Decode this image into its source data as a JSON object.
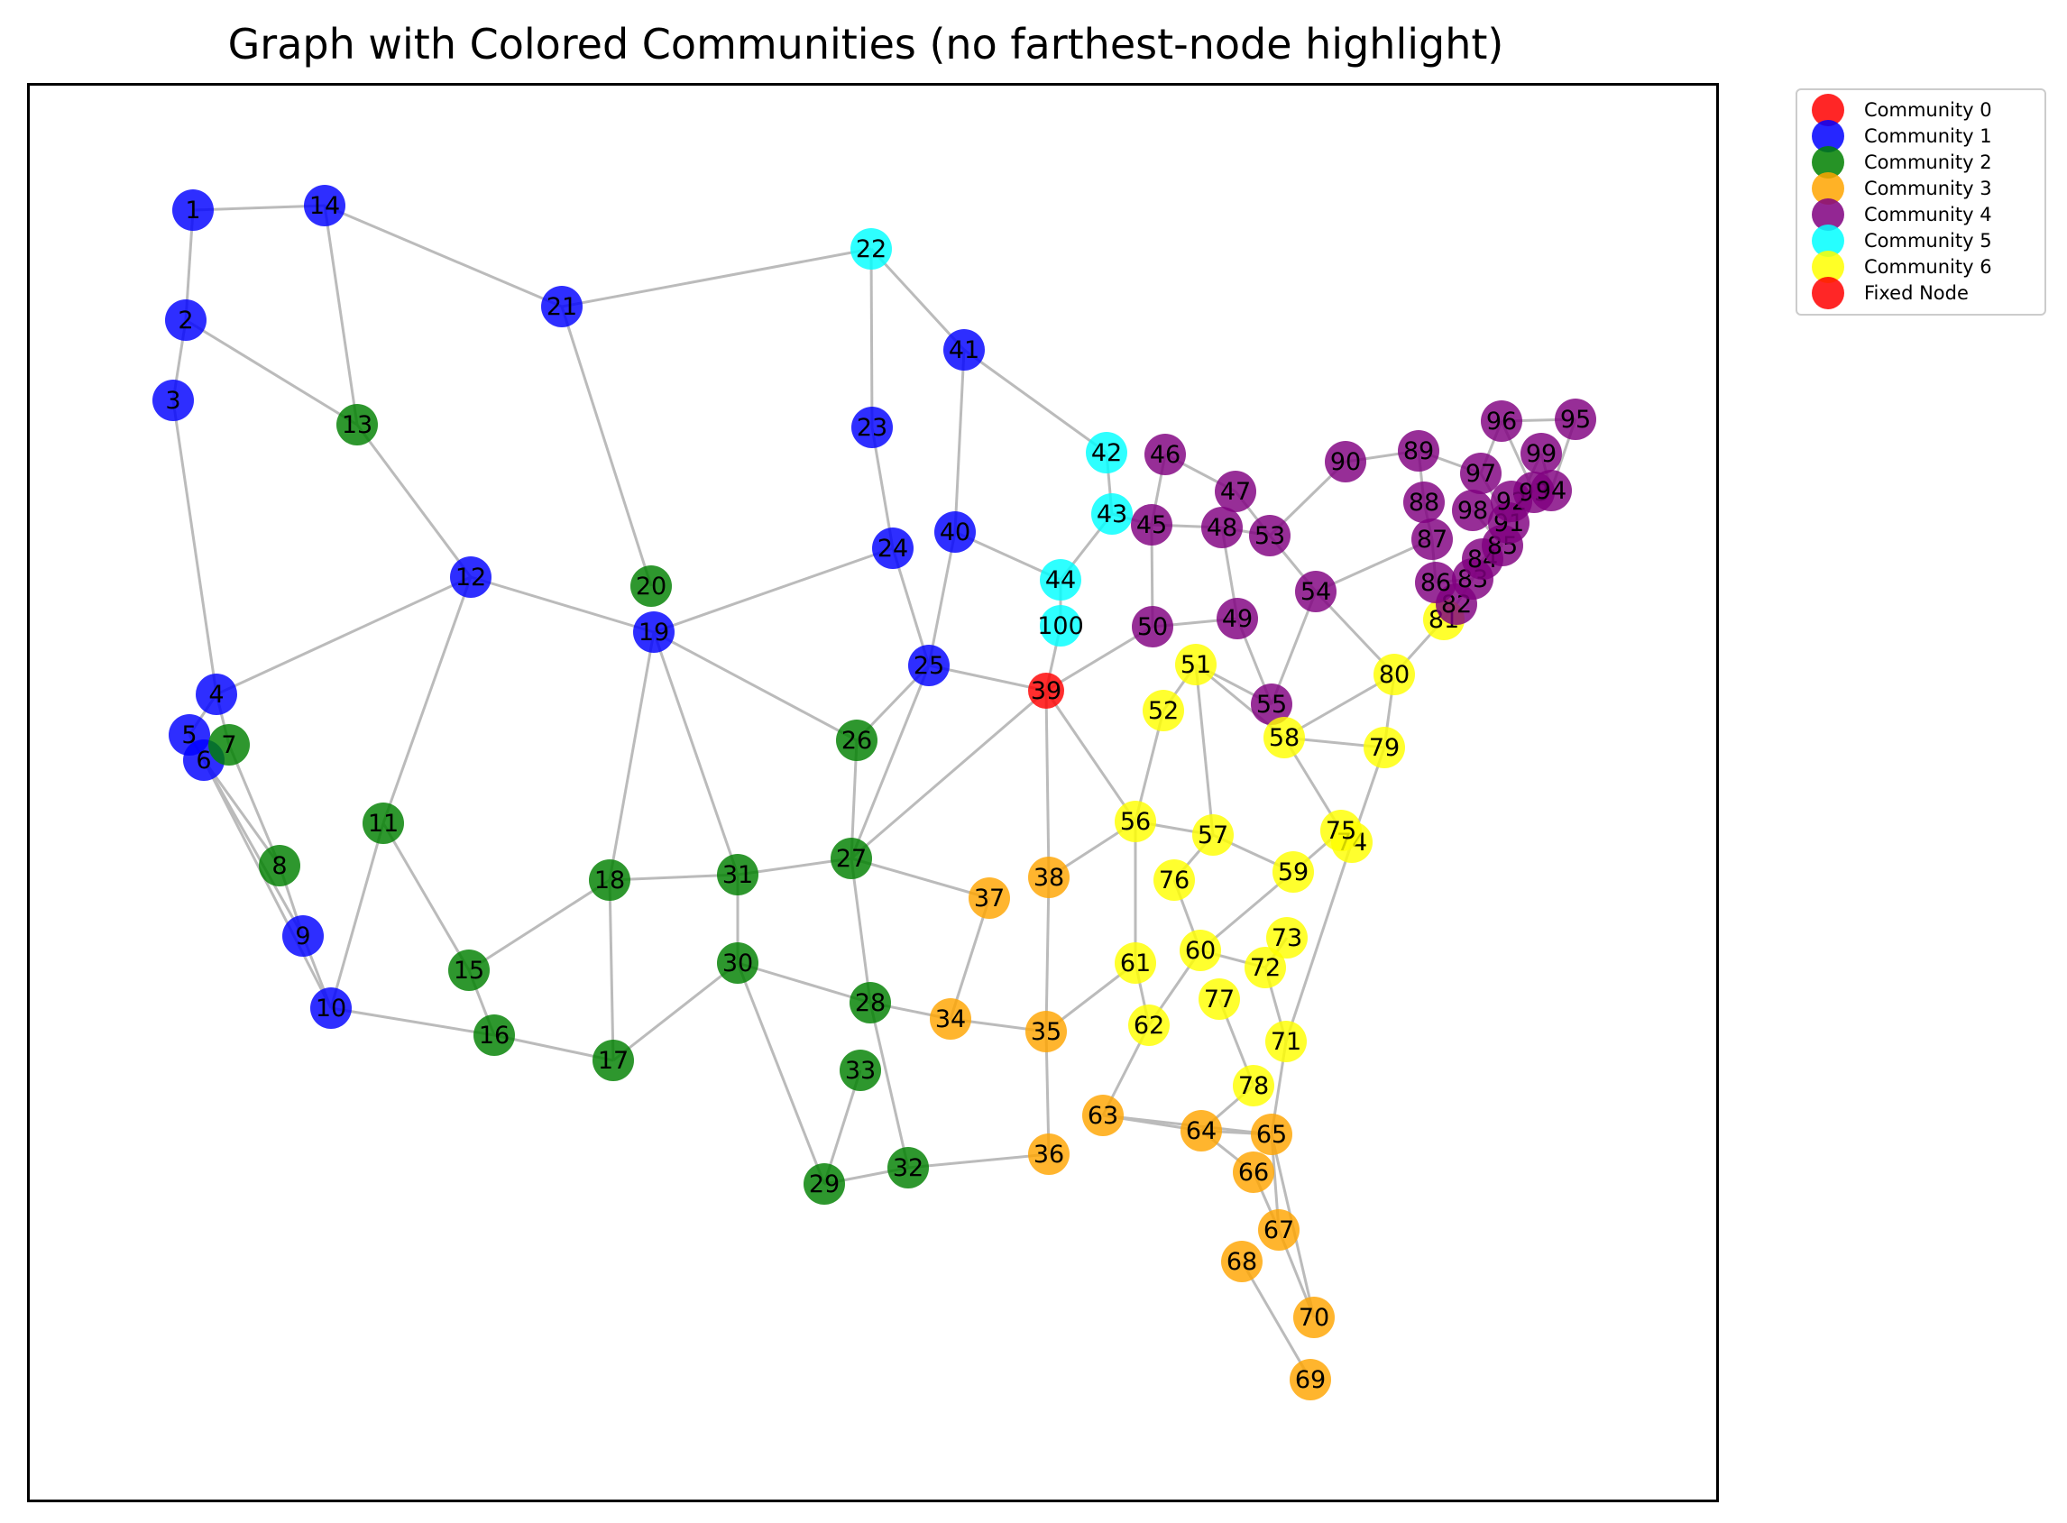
{
  "title": "Graph with Colored Communities (no farthest-node highlight)",
  "legend": [
    {
      "label": "Community 0",
      "color": "#ff0000"
    },
    {
      "label": "Community 1",
      "color": "#0000ff"
    },
    {
      "label": "Community 2",
      "color": "#008000"
    },
    {
      "label": "Community 3",
      "color": "#ffa500"
    },
    {
      "label": "Community 4",
      "color": "#800080"
    },
    {
      "label": "Community 5",
      "color": "#00ffff"
    },
    {
      "label": "Community 6",
      "color": "#ffff00"
    },
    {
      "label": "Fixed Node",
      "color": "#ff0000"
    }
  ],
  "community_colors": {
    "0": "#ff0000",
    "1": "#0000ff",
    "2": "#008000",
    "3": "#ffa500",
    "4": "#800080",
    "5": "#00ffff",
    "6": "#ffff00",
    "fixed": "#ff0000"
  },
  "edge_color": "#bbbbbb",
  "nodes": [
    {
      "id": "1",
      "community": 1
    },
    {
      "id": "2",
      "community": 1
    },
    {
      "id": "3",
      "community": 1
    },
    {
      "id": "4",
      "community": 1
    },
    {
      "id": "5",
      "community": 1
    },
    {
      "id": "6",
      "community": 1
    },
    {
      "id": "7",
      "community": 2
    },
    {
      "id": "8",
      "community": 2
    },
    {
      "id": "9",
      "community": 1
    },
    {
      "id": "10",
      "community": 1
    },
    {
      "id": "11",
      "community": 2
    },
    {
      "id": "12",
      "community": 1
    },
    {
      "id": "13",
      "community": 2
    },
    {
      "id": "14",
      "community": 1
    },
    {
      "id": "15",
      "community": 2
    },
    {
      "id": "16",
      "community": 2
    },
    {
      "id": "17",
      "community": 2
    },
    {
      "id": "18",
      "community": 2
    },
    {
      "id": "19",
      "community": 1
    },
    {
      "id": "20",
      "community": 2
    },
    {
      "id": "21",
      "community": 1
    },
    {
      "id": "22",
      "community": 5
    },
    {
      "id": "23",
      "community": 1
    },
    {
      "id": "24",
      "community": 1
    },
    {
      "id": "25",
      "community": 1
    },
    {
      "id": "26",
      "community": 2
    },
    {
      "id": "27",
      "community": 2
    },
    {
      "id": "28",
      "community": 2
    },
    {
      "id": "29",
      "community": 2
    },
    {
      "id": "30",
      "community": 2
    },
    {
      "id": "31",
      "community": 2
    },
    {
      "id": "32",
      "community": 2
    },
    {
      "id": "33",
      "community": 2
    },
    {
      "id": "34",
      "community": 3
    },
    {
      "id": "35",
      "community": 3
    },
    {
      "id": "36",
      "community": 3
    },
    {
      "id": "37",
      "community": 3
    },
    {
      "id": "38",
      "community": 3
    },
    {
      "id": "39",
      "community": "fixed"
    },
    {
      "id": "40",
      "community": 1
    },
    {
      "id": "41",
      "community": 1
    },
    {
      "id": "42",
      "community": 5
    },
    {
      "id": "43",
      "community": 5
    },
    {
      "id": "44",
      "community": 5
    },
    {
      "id": "100",
      "community": 5
    },
    {
      "id": "45",
      "community": 4
    },
    {
      "id": "46",
      "community": 4
    },
    {
      "id": "47",
      "community": 4
    },
    {
      "id": "48",
      "community": 4
    },
    {
      "id": "49",
      "community": 4
    },
    {
      "id": "50",
      "community": 4
    },
    {
      "id": "51",
      "community": 6
    },
    {
      "id": "52",
      "community": 6
    },
    {
      "id": "53",
      "community": 4
    },
    {
      "id": "54",
      "community": 4
    },
    {
      "id": "55",
      "community": 4
    },
    {
      "id": "56",
      "community": 6
    },
    {
      "id": "57",
      "community": 6
    },
    {
      "id": "58",
      "community": 6
    },
    {
      "id": "59",
      "community": 6
    },
    {
      "id": "60",
      "community": 6
    },
    {
      "id": "61",
      "community": 6
    },
    {
      "id": "62",
      "community": 6
    },
    {
      "id": "63",
      "community": 3
    },
    {
      "id": "64",
      "community": 3
    },
    {
      "id": "65",
      "community": 3
    },
    {
      "id": "66",
      "community": 3
    },
    {
      "id": "67",
      "community": 3
    },
    {
      "id": "68",
      "community": 3
    },
    {
      "id": "69",
      "community": 3
    },
    {
      "id": "70",
      "community": 3
    },
    {
      "id": "71",
      "community": 6
    },
    {
      "id": "72",
      "community": 6
    },
    {
      "id": "73",
      "community": 6
    },
    {
      "id": "74",
      "community": 6
    },
    {
      "id": "75",
      "community": 6
    },
    {
      "id": "76",
      "community": 6
    },
    {
      "id": "77",
      "community": 6
    },
    {
      "id": "78",
      "community": 6
    },
    {
      "id": "79",
      "community": 6
    },
    {
      "id": "80",
      "community": 6
    },
    {
      "id": "81",
      "community": 6
    },
    {
      "id": "82",
      "community": 4
    },
    {
      "id": "83",
      "community": 4
    },
    {
      "id": "84",
      "community": 4
    },
    {
      "id": "85",
      "community": 4
    },
    {
      "id": "86",
      "community": 4
    },
    {
      "id": "87",
      "community": 4
    },
    {
      "id": "88",
      "community": 4
    },
    {
      "id": "89",
      "community": 4
    },
    {
      "id": "90",
      "community": 4
    },
    {
      "id": "91",
      "community": 4
    },
    {
      "id": "92",
      "community": 4
    },
    {
      "id": "93",
      "community": 4
    },
    {
      "id": "94",
      "community": 4
    },
    {
      "id": "95",
      "community": 4
    },
    {
      "id": "96",
      "community": 4
    },
    {
      "id": "97",
      "community": 4
    },
    {
      "id": "98",
      "community": 4
    },
    {
      "id": "99",
      "community": 4
    }
  ],
  "edges": [
    [
      "1",
      "14"
    ],
    [
      "1",
      "2"
    ],
    [
      "2",
      "3"
    ],
    [
      "2",
      "13"
    ],
    [
      "3",
      "4"
    ],
    [
      "14",
      "13"
    ],
    [
      "14",
      "21"
    ],
    [
      "13",
      "12"
    ],
    [
      "12",
      "4"
    ],
    [
      "12",
      "19"
    ],
    [
      "12",
      "11"
    ],
    [
      "4",
      "5"
    ],
    [
      "5",
      "6"
    ],
    [
      "4",
      "7"
    ],
    [
      "7",
      "8"
    ],
    [
      "6",
      "8"
    ],
    [
      "8",
      "9"
    ],
    [
      "6",
      "9"
    ],
    [
      "9",
      "10"
    ],
    [
      "6",
      "10"
    ],
    [
      "11",
      "10"
    ],
    [
      "11",
      "15"
    ],
    [
      "10",
      "16"
    ],
    [
      "15",
      "16"
    ],
    [
      "15",
      "18"
    ],
    [
      "16",
      "17"
    ],
    [
      "18",
      "17"
    ],
    [
      "18",
      "19"
    ],
    [
      "18",
      "31"
    ],
    [
      "21",
      "20"
    ],
    [
      "21",
      "22"
    ],
    [
      "19",
      "24"
    ],
    [
      "19",
      "26"
    ],
    [
      "19",
      "31"
    ],
    [
      "31",
      "27"
    ],
    [
      "31",
      "30"
    ],
    [
      "30",
      "17"
    ],
    [
      "30",
      "28"
    ],
    [
      "30",
      "29"
    ],
    [
      "22",
      "23"
    ],
    [
      "22",
      "41"
    ],
    [
      "23",
      "24"
    ],
    [
      "24",
      "25"
    ],
    [
      "40",
      "25"
    ],
    [
      "40",
      "41"
    ],
    [
      "40",
      "44"
    ],
    [
      "41",
      "42"
    ],
    [
      "26",
      "27"
    ],
    [
      "25",
      "26"
    ],
    [
      "25",
      "27"
    ],
    [
      "25",
      "39"
    ],
    [
      "27",
      "39"
    ],
    [
      "27",
      "28"
    ],
    [
      "27",
      "37"
    ],
    [
      "28",
      "34"
    ],
    [
      "28",
      "32"
    ],
    [
      "33",
      "29"
    ],
    [
      "29",
      "32"
    ],
    [
      "32",
      "36"
    ],
    [
      "34",
      "37"
    ],
    [
      "34",
      "35"
    ],
    [
      "35",
      "38"
    ],
    [
      "35",
      "36"
    ],
    [
      "35",
      "61"
    ],
    [
      "38",
      "39"
    ],
    [
      "38",
      "56"
    ],
    [
      "39",
      "56"
    ],
    [
      "39",
      "100"
    ],
    [
      "39",
      "50"
    ],
    [
      "100",
      "44"
    ],
    [
      "44",
      "43"
    ],
    [
      "42",
      "43"
    ],
    [
      "43",
      "45"
    ],
    [
      "45",
      "46"
    ],
    [
      "46",
      "47"
    ],
    [
      "45",
      "48"
    ],
    [
      "45",
      "50"
    ],
    [
      "48",
      "53"
    ],
    [
      "48",
      "49"
    ],
    [
      "47",
      "53"
    ],
    [
      "50",
      "49"
    ],
    [
      "49",
      "55"
    ],
    [
      "53",
      "54"
    ],
    [
      "53",
      "90"
    ],
    [
      "54",
      "55"
    ],
    [
      "54",
      "80"
    ],
    [
      "54",
      "87"
    ],
    [
      "90",
      "89"
    ],
    [
      "89",
      "97"
    ],
    [
      "89",
      "88"
    ],
    [
      "88",
      "87"
    ],
    [
      "87",
      "86"
    ],
    [
      "51",
      "52"
    ],
    [
      "51",
      "55"
    ],
    [
      "51",
      "57"
    ],
    [
      "51",
      "58"
    ],
    [
      "52",
      "56"
    ],
    [
      "56",
      "57"
    ],
    [
      "56",
      "61"
    ],
    [
      "57",
      "76"
    ],
    [
      "57",
      "59"
    ],
    [
      "58",
      "80"
    ],
    [
      "58",
      "75"
    ],
    [
      "58",
      "79"
    ],
    [
      "80",
      "79"
    ],
    [
      "80",
      "81"
    ],
    [
      "79",
      "74"
    ],
    [
      "75",
      "59"
    ],
    [
      "76",
      "60"
    ],
    [
      "59",
      "60"
    ],
    [
      "60",
      "72"
    ],
    [
      "60",
      "62"
    ],
    [
      "61",
      "62"
    ],
    [
      "62",
      "63"
    ],
    [
      "63",
      "64"
    ],
    [
      "63",
      "65"
    ],
    [
      "64",
      "66"
    ],
    [
      "64",
      "65"
    ],
    [
      "65",
      "70"
    ],
    [
      "65",
      "67"
    ],
    [
      "66",
      "67"
    ],
    [
      "67",
      "70"
    ],
    [
      "68",
      "69"
    ],
    [
      "72",
      "71"
    ],
    [
      "73",
      "72"
    ],
    [
      "74",
      "71"
    ],
    [
      "71",
      "65"
    ],
    [
      "77",
      "78"
    ],
    [
      "78",
      "64"
    ],
    [
      "97",
      "96"
    ],
    [
      "96",
      "95"
    ],
    [
      "95",
      "94"
    ],
    [
      "96",
      "93"
    ],
    [
      "99",
      "91"
    ],
    [
      "98",
      "85"
    ],
    [
      "81",
      "82"
    ],
    [
      "82",
      "83"
    ],
    [
      "83",
      "84"
    ],
    [
      "84",
      "85"
    ],
    [
      "86",
      "83"
    ],
    [
      "97",
      "91"
    ],
    [
      "99",
      "94"
    ]
  ]
}
